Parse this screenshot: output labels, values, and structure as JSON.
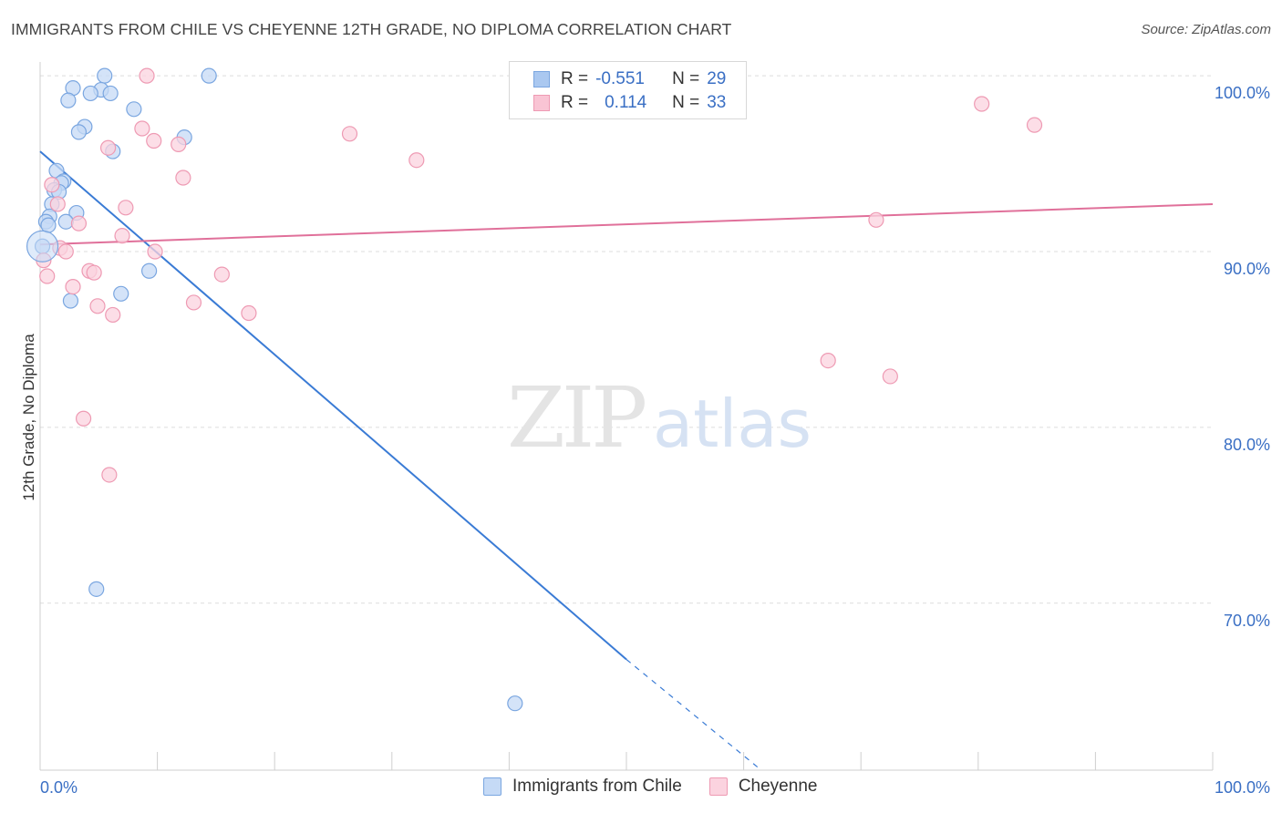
{
  "title": "IMMIGRANTS FROM CHILE VS CHEYENNE 12TH GRADE, NO DIPLOMA CORRELATION CHART",
  "source": "Source: ZipAtlas.com",
  "watermark": {
    "zip": "ZIP",
    "atlas": "atlas"
  },
  "legend": {
    "rows": [
      {
        "r_label": "R =",
        "r_value": "-0.551",
        "n_label": "N =",
        "n_value": "29",
        "color": "#aac8f0",
        "border": "#7aa6e0"
      },
      {
        "r_label": "R =",
        "r_value": "0.114",
        "n_label": "N =",
        "n_value": "33",
        "color": "#f9c4d4",
        "border": "#ee9ab3"
      }
    ]
  },
  "bottom_legend": [
    {
      "label": "Immigrants from Chile",
      "color": "#c5daf6",
      "border": "#7aa6e0"
    },
    {
      "label": "Cheyenne",
      "color": "#fbd3df",
      "border": "#ee9ab3"
    }
  ],
  "chart_data": {
    "type": "scatter",
    "title": "IMMIGRANTS FROM CHILE VS CHEYENNE 12TH GRADE, NO DIPLOMA CORRELATION CHART",
    "xlabel": "",
    "ylabel": "12th Grade, No Diploma",
    "xlim": [
      0,
      100
    ],
    "ylim": [
      60.5,
      101.2
    ],
    "x_ticks": [
      0,
      100
    ],
    "x_tick_labels": [
      "0.0%",
      "100.0%"
    ],
    "y_ticks": [
      70,
      80,
      90,
      100
    ],
    "y_tick_labels": [
      "70.0%",
      "80.0%",
      "90.0%",
      "100.0%"
    ],
    "grid": true,
    "legend_position": "top-center",
    "series": [
      {
        "name": "Immigrants from Chile",
        "color": "#7aa6e0",
        "fill": "#c5daf6",
        "trend": {
          "x": [
            0,
            50
          ],
          "y": [
            95.7,
            66.8
          ],
          "dashed_to": {
            "x": 61.5,
            "y": 60.5
          },
          "color": "#3a7bd5"
        },
        "points": [
          {
            "x": 5.5,
            "y": 100.0
          },
          {
            "x": 14.4,
            "y": 100.0
          },
          {
            "x": 2.8,
            "y": 99.3
          },
          {
            "x": 5.2,
            "y": 99.2
          },
          {
            "x": 4.3,
            "y": 99.0
          },
          {
            "x": 6.0,
            "y": 99.0
          },
          {
            "x": 2.4,
            "y": 98.6
          },
          {
            "x": 8.0,
            "y": 98.1
          },
          {
            "x": 3.8,
            "y": 97.1
          },
          {
            "x": 3.3,
            "y": 96.8
          },
          {
            "x": 12.3,
            "y": 96.5
          },
          {
            "x": 6.2,
            "y": 95.7
          },
          {
            "x": 1.4,
            "y": 94.6
          },
          {
            "x": 2.0,
            "y": 94.0
          },
          {
            "x": 1.8,
            "y": 93.9
          },
          {
            "x": 1.2,
            "y": 93.5
          },
          {
            "x": 1.6,
            "y": 93.4
          },
          {
            "x": 1.0,
            "y": 92.7
          },
          {
            "x": 3.1,
            "y": 92.2
          },
          {
            "x": 0.8,
            "y": 92.0
          },
          {
            "x": 0.5,
            "y": 91.7
          },
          {
            "x": 2.2,
            "y": 91.7
          },
          {
            "x": 0.7,
            "y": 91.5
          },
          {
            "x": 0.2,
            "y": 90.3
          },
          {
            "x": 9.3,
            "y": 88.9
          },
          {
            "x": 6.9,
            "y": 87.6
          },
          {
            "x": 2.6,
            "y": 87.2
          },
          {
            "x": 4.8,
            "y": 70.8
          },
          {
            "x": 40.5,
            "y": 64.3
          }
        ]
      },
      {
        "name": "Cheyenne",
        "color": "#ee9ab3",
        "fill": "#fbd3df",
        "trend": {
          "x": [
            0,
            100
          ],
          "y": [
            90.4,
            92.7
          ],
          "color": "#e0709a"
        },
        "points": [
          {
            "x": 9.1,
            "y": 100.0
          },
          {
            "x": 80.3,
            "y": 98.4
          },
          {
            "x": 84.8,
            "y": 97.2
          },
          {
            "x": 8.7,
            "y": 97.0
          },
          {
            "x": 26.4,
            "y": 96.7
          },
          {
            "x": 9.7,
            "y": 96.3
          },
          {
            "x": 11.8,
            "y": 96.1
          },
          {
            "x": 5.8,
            "y": 95.9
          },
          {
            "x": 32.1,
            "y": 95.2
          },
          {
            "x": 12.2,
            "y": 94.2
          },
          {
            "x": 1.0,
            "y": 93.8
          },
          {
            "x": 1.5,
            "y": 92.7
          },
          {
            "x": 7.3,
            "y": 92.5
          },
          {
            "x": 71.3,
            "y": 91.8
          },
          {
            "x": 3.3,
            "y": 91.6
          },
          {
            "x": 7.0,
            "y": 90.9
          },
          {
            "x": 1.7,
            "y": 90.2
          },
          {
            "x": 2.2,
            "y": 90.0
          },
          {
            "x": 9.8,
            "y": 90.0
          },
          {
            "x": 0.3,
            "y": 89.5
          },
          {
            "x": 4.2,
            "y": 88.9
          },
          {
            "x": 4.6,
            "y": 88.8
          },
          {
            "x": 15.5,
            "y": 88.7
          },
          {
            "x": 0.6,
            "y": 88.6
          },
          {
            "x": 2.8,
            "y": 88.0
          },
          {
            "x": 13.1,
            "y": 87.1
          },
          {
            "x": 4.9,
            "y": 86.9
          },
          {
            "x": 17.8,
            "y": 86.5
          },
          {
            "x": 6.2,
            "y": 86.4
          },
          {
            "x": 67.2,
            "y": 83.8
          },
          {
            "x": 72.5,
            "y": 82.9
          },
          {
            "x": 3.7,
            "y": 80.5
          },
          {
            "x": 5.9,
            "y": 77.3
          }
        ]
      }
    ]
  }
}
